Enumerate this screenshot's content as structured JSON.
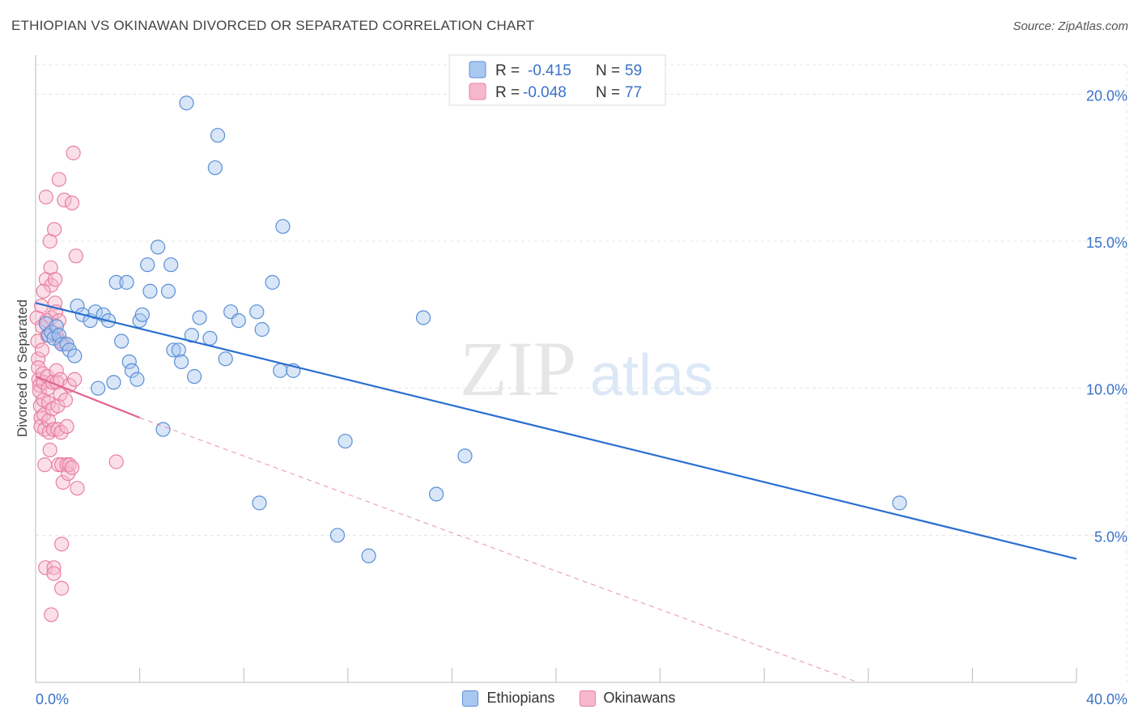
{
  "header": {
    "title": "ETHIOPIAN VS OKINAWAN DIVORCED OR SEPARATED CORRELATION CHART",
    "source": "Source: ZipAtlas.com"
  },
  "watermark": {
    "zip": "ZIP",
    "atlas": "atlas"
  },
  "stats_legend": [
    {
      "r_label": "R =",
      "r_value": "-0.415",
      "n_label": "N =",
      "n_value": "59"
    },
    {
      "r_label": "R =",
      "r_value": "-0.048",
      "n_label": "N =",
      "n_value": "77"
    }
  ],
  "colors": {
    "ethiopians_fill": "#a9c8f0",
    "ethiopians_stroke": "#5b8fd6",
    "ethiopians_line": "#2a6fd0",
    "okinawans_fill": "#f7b8cb",
    "okinawans_stroke": "#e87fa2",
    "okinawans_line": "#e0648e",
    "value_text": "#3a72c8",
    "grid": "#e4e4e4"
  },
  "chart_data": {
    "type": "scatter",
    "title": "ETHIOPIAN VS OKINAWAN DIVORCED OR SEPARATED CORRELATION CHART",
    "xlabel": "",
    "ylabel": "Divorced or Separated",
    "xlim": [
      0,
      40
    ],
    "ylim": [
      0,
      21
    ],
    "x_tick_labels": [
      "0.0%",
      "40.0%"
    ],
    "y_ticks": [
      5,
      10,
      15,
      20
    ],
    "y_tick_labels": [
      "5.0%",
      "10.0%",
      "15.0%",
      "20.0%"
    ],
    "grid": true,
    "legend_position": "top-center",
    "series": [
      {
        "name": "Ethiopians",
        "r": -0.415,
        "n": 59,
        "trend": {
          "x": [
            0,
            40
          ],
          "y": [
            12.9,
            4.2
          ],
          "style": "solid"
        },
        "points": [
          [
            0.4,
            12.2
          ],
          [
            0.5,
            11.8
          ],
          [
            0.6,
            11.9
          ],
          [
            0.7,
            11.7
          ],
          [
            0.8,
            12.1
          ],
          [
            0.9,
            11.8
          ],
          [
            1.0,
            11.5
          ],
          [
            1.2,
            11.5
          ],
          [
            1.3,
            11.3
          ],
          [
            1.5,
            11.1
          ],
          [
            1.6,
            12.8
          ],
          [
            1.8,
            12.5
          ],
          [
            2.1,
            12.3
          ],
          [
            2.3,
            12.6
          ],
          [
            2.4,
            10.0
          ],
          [
            2.6,
            12.5
          ],
          [
            2.8,
            12.3
          ],
          [
            3.0,
            10.2
          ],
          [
            3.1,
            13.6
          ],
          [
            3.3,
            11.6
          ],
          [
            3.5,
            13.6
          ],
          [
            3.6,
            10.9
          ],
          [
            3.7,
            10.6
          ],
          [
            3.9,
            10.3
          ],
          [
            4.0,
            12.3
          ],
          [
            4.1,
            12.5
          ],
          [
            4.3,
            14.2
          ],
          [
            4.4,
            13.3
          ],
          [
            4.7,
            14.8
          ],
          [
            4.9,
            8.6
          ],
          [
            5.1,
            13.3
          ],
          [
            5.2,
            14.2
          ],
          [
            5.3,
            11.3
          ],
          [
            5.5,
            11.3
          ],
          [
            5.6,
            10.9
          ],
          [
            5.8,
            19.7
          ],
          [
            6.0,
            11.8
          ],
          [
            6.1,
            10.4
          ],
          [
            6.3,
            12.4
          ],
          [
            6.7,
            11.7
          ],
          [
            6.9,
            17.5
          ],
          [
            7.0,
            18.6
          ],
          [
            7.3,
            11.0
          ],
          [
            7.5,
            12.6
          ],
          [
            7.8,
            12.3
          ],
          [
            8.5,
            12.6
          ],
          [
            8.6,
            6.1
          ],
          [
            8.7,
            12.0
          ],
          [
            9.1,
            13.6
          ],
          [
            9.4,
            10.6
          ],
          [
            9.5,
            15.5
          ],
          [
            9.9,
            10.6
          ],
          [
            11.6,
            5.0
          ],
          [
            11.9,
            8.2
          ],
          [
            12.8,
            4.3
          ],
          [
            14.9,
            12.4
          ],
          [
            15.4,
            6.4
          ],
          [
            16.5,
            7.7
          ],
          [
            33.2,
            6.1
          ]
        ]
      },
      {
        "name": "Okinawans",
        "r": -0.048,
        "n": 77,
        "trend": {
          "x": [
            0,
            4.0
          ],
          "y": [
            10.4,
            9.0
          ],
          "style": "solid",
          "dashed_extension": {
            "x": [
              4.0,
              31.6
            ],
            "y": [
              9.0,
              0.0
            ]
          }
        },
        "points": [
          [
            0.05,
            12.4
          ],
          [
            0.08,
            11.6
          ],
          [
            0.1,
            11.0
          ],
          [
            0.1,
            10.7
          ],
          [
            0.12,
            10.3
          ],
          [
            0.15,
            10.1
          ],
          [
            0.15,
            9.9
          ],
          [
            0.18,
            9.4
          ],
          [
            0.2,
            9.0
          ],
          [
            0.2,
            8.7
          ],
          [
            0.22,
            12.8
          ],
          [
            0.25,
            12.1
          ],
          [
            0.25,
            11.3
          ],
          [
            0.28,
            10.5
          ],
          [
            0.3,
            10.2
          ],
          [
            0.3,
            9.6
          ],
          [
            0.32,
            9.1
          ],
          [
            0.35,
            8.6
          ],
          [
            0.35,
            7.4
          ],
          [
            0.38,
            3.9
          ],
          [
            0.4,
            16.5
          ],
          [
            0.4,
            13.7
          ],
          [
            0.42,
            12.3
          ],
          [
            0.45,
            11.8
          ],
          [
            0.45,
            10.4
          ],
          [
            0.48,
            10.0
          ],
          [
            0.5,
            9.5
          ],
          [
            0.5,
            8.9
          ],
          [
            0.52,
            8.5
          ],
          [
            0.55,
            7.9
          ],
          [
            0.55,
            15.0
          ],
          [
            0.58,
            14.1
          ],
          [
            0.6,
            13.5
          ],
          [
            0.6,
            12.4
          ],
          [
            0.62,
            11.9
          ],
          [
            0.65,
            10.2
          ],
          [
            0.65,
            9.3
          ],
          [
            0.68,
            8.6
          ],
          [
            0.7,
            3.9
          ],
          [
            0.7,
            3.7
          ],
          [
            0.72,
            15.4
          ],
          [
            0.75,
            13.7
          ],
          [
            0.75,
            12.9
          ],
          [
            0.78,
            12.6
          ],
          [
            0.8,
            11.8
          ],
          [
            0.8,
            10.6
          ],
          [
            0.82,
            10.2
          ],
          [
            0.85,
            9.4
          ],
          [
            0.85,
            8.6
          ],
          [
            0.88,
            7.4
          ],
          [
            0.9,
            17.1
          ],
          [
            0.9,
            12.3
          ],
          [
            0.92,
            11.6
          ],
          [
            0.95,
            10.3
          ],
          [
            0.95,
            9.8
          ],
          [
            0.98,
            8.5
          ],
          [
            1.0,
            7.4
          ],
          [
            1.0,
            4.7
          ],
          [
            1.0,
            3.2
          ],
          [
            1.05,
            6.8
          ],
          [
            1.1,
            16.4
          ],
          [
            1.1,
            11.5
          ],
          [
            1.15,
            9.6
          ],
          [
            1.2,
            8.7
          ],
          [
            1.2,
            7.4
          ],
          [
            1.25,
            7.1
          ],
          [
            1.3,
            7.4
          ],
          [
            1.3,
            10.1
          ],
          [
            1.4,
            16.3
          ],
          [
            1.4,
            7.3
          ],
          [
            1.45,
            18.0
          ],
          [
            1.5,
            10.3
          ],
          [
            1.55,
            14.5
          ],
          [
            1.6,
            6.6
          ],
          [
            0.6,
            2.3
          ],
          [
            3.1,
            7.5
          ],
          [
            0.3,
            13.3
          ]
        ]
      }
    ]
  },
  "legend_bottom": [
    {
      "label": "Ethiopians"
    },
    {
      "label": "Okinawans"
    }
  ]
}
